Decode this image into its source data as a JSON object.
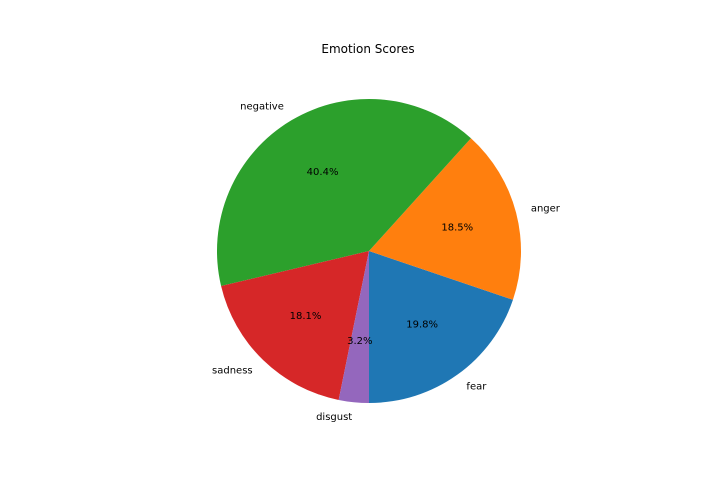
{
  "chart_data": {
    "type": "pie",
    "title": "Emotion Scores",
    "start_angle_deg": -90,
    "direction": "counterclockwise",
    "slices": [
      {
        "label": "fear",
        "value": 19.8,
        "pct_label": "19.8%",
        "color": "#1f77b4"
      },
      {
        "label": "anger",
        "value": 18.5,
        "pct_label": "18.5%",
        "color": "#ff7f0e"
      },
      {
        "label": "negative",
        "value": 40.4,
        "pct_label": "40.4%",
        "color": "#2ca02c"
      },
      {
        "label": "sadness",
        "value": 18.1,
        "pct_label": "18.1%",
        "color": "#d62728"
      },
      {
        "label": "disgust",
        "value": 3.2,
        "pct_label": "3.2%",
        "color": "#9467bd"
      }
    ]
  }
}
